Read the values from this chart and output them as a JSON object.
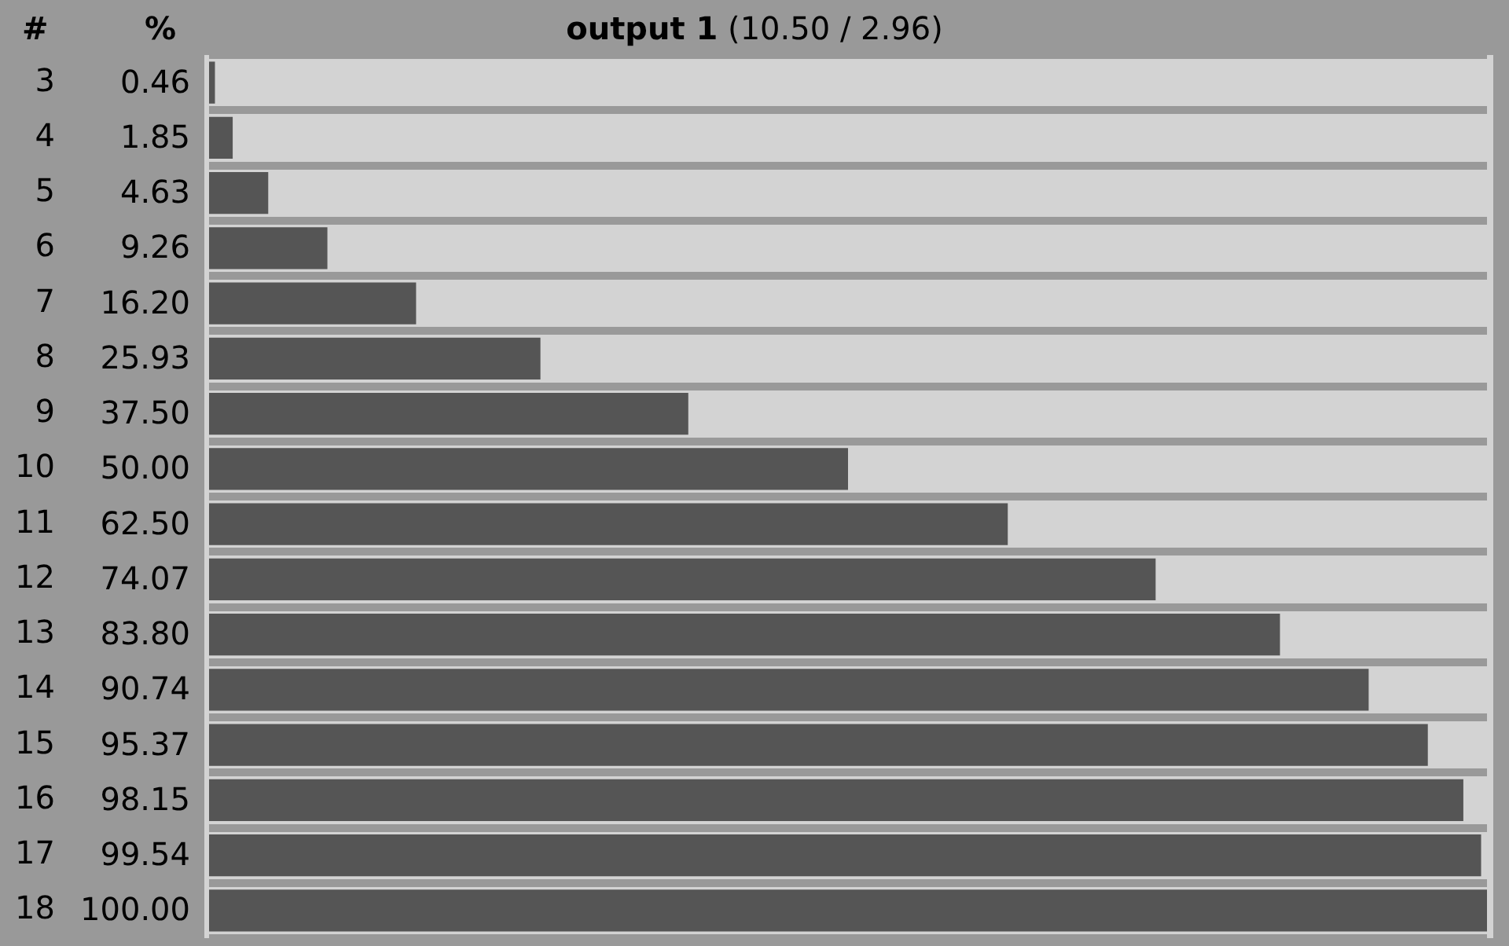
{
  "chart_data": {
    "type": "bar",
    "orientation": "horizontal",
    "title": "output 1",
    "subtitle": "(10.50 / 2.96)",
    "ylabel": "#",
    "xlabel": "%",
    "categories": [
      "3",
      "4",
      "5",
      "6",
      "7",
      "8",
      "9",
      "10",
      "11",
      "12",
      "13",
      "14",
      "15",
      "16",
      "17",
      "18"
    ],
    "values": [
      0.46,
      1.85,
      4.63,
      9.26,
      16.2,
      25.93,
      37.5,
      50,
      62.5,
      74.07,
      83.8,
      90.74,
      95.37,
      98.15,
      99.54,
      100
    ],
    "value_labels": [
      "0.46",
      "1.85",
      "4.63",
      "9.26",
      "16.20",
      "25.93",
      "37.50",
      "50.00",
      "62.50",
      "74.07",
      "83.80",
      "90.74",
      "95.37",
      "98.15",
      "99.54",
      "100.00"
    ],
    "color": "#555555",
    "grid": "y"
  }
}
